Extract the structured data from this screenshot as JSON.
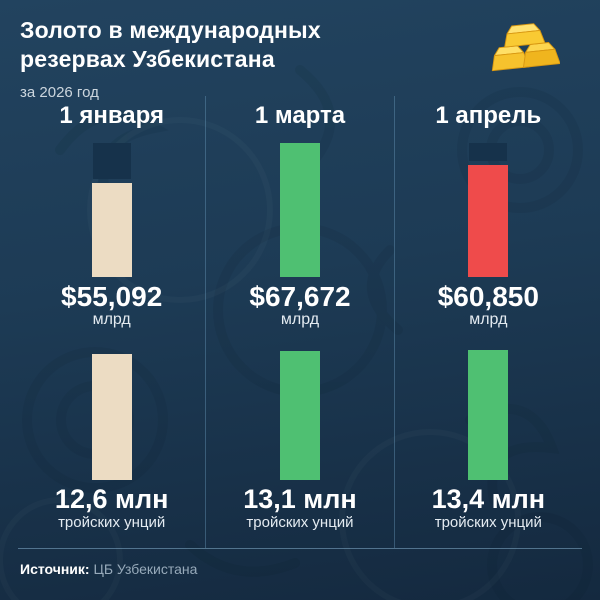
{
  "header": {
    "title_lines": [
      "Золото в международных",
      "резервах Узбекистана"
    ],
    "subtitle": "за 2026 год",
    "icon": "gold-bars-icon"
  },
  "columns": [
    {
      "date": "1 января",
      "usd_value": "$55,092",
      "usd_unit": "млрд",
      "oz_value": "12,6 млн",
      "oz_unit": "тройских унций"
    },
    {
      "date": "1 марта",
      "usd_value": "$67,672",
      "usd_unit": "млрд",
      "oz_value": "13,1 млн",
      "oz_unit": "тройских унций"
    },
    {
      "date": "1 апрель",
      "usd_value": "$60,850",
      "usd_unit": "млрд",
      "oz_value": "13,4 млн",
      "oz_unit": "тройских унций"
    }
  ],
  "footer": {
    "source_label": "Источник:",
    "source_value": "ЦБ Узбекистана"
  },
  "colors": {
    "background_top": "#22435f",
    "background_bottom": "#14293f",
    "bar_cream": "#ecdcc3",
    "bar_green": "#4fc072",
    "bar_red": "#ef4b4b",
    "bar_cap_dark": "#16324b",
    "gold": "#f7c528",
    "text_primary": "#ffffff",
    "text_muted": "#97aaba"
  },
  "chart_data": [
    {
      "type": "bar",
      "categories": [
        "1 января",
        "1 марта",
        "1 апрель"
      ],
      "values": [
        55.092,
        67.672,
        60.85
      ],
      "ylabel": "млрд",
      "value_labels": [
        "$55,092",
        "$67,672",
        "$60,850"
      ],
      "bar_colors": [
        "#ecdcc3",
        "#4fc072",
        "#ef4b4b"
      ],
      "max_shown_as_dark_cap": true,
      "legend_position": "none",
      "grid": false
    },
    {
      "type": "bar",
      "categories": [
        "1 января",
        "1 марта",
        "1 апрель"
      ],
      "values": [
        12.6,
        13.1,
        13.4
      ],
      "ylabel": "тройских унций",
      "value_labels": [
        "12,6 млн",
        "13,1 млн",
        "13,4 млн"
      ],
      "bar_colors": [
        "#ecdcc3",
        "#4fc072",
        "#4fc072"
      ],
      "legend_position": "none",
      "grid": false
    }
  ]
}
